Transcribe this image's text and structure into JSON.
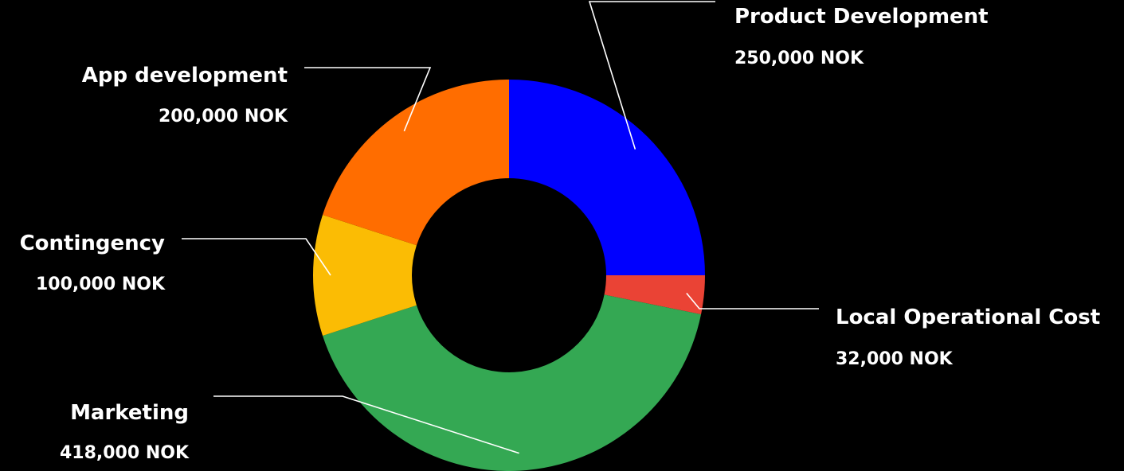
{
  "chart_data": {
    "type": "pie",
    "style": "donut",
    "title": "",
    "slices": [
      {
        "label": "Product Development",
        "value": 250000,
        "value_text": "250,000 NOK",
        "color": "#0000FF"
      },
      {
        "label": "Local Operational Cost",
        "value": 32000,
        "value_text": "32,000 NOK",
        "color": "#EA4335"
      },
      {
        "label": "Marketing",
        "value": 418000,
        "value_text": "418,000 NOK",
        "color": "#34A853"
      },
      {
        "label": "Contingency",
        "value": 100000,
        "value_text": "100,000 NOK",
        "color": "#FBBC04"
      },
      {
        "label": "App development",
        "value": 200000,
        "value_text": "200,000 NOK",
        "color": "#FF6D00"
      }
    ],
    "currency": "NOK",
    "legend": "none",
    "labels": "outside-with-leader-lines"
  }
}
